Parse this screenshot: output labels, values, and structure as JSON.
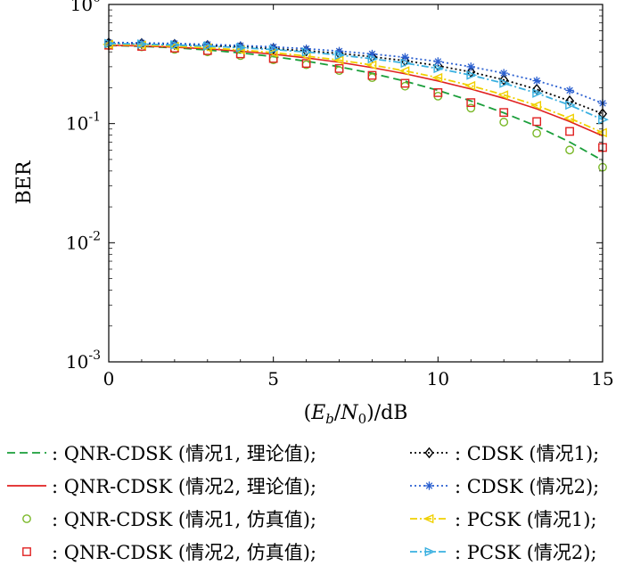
{
  "chart_data": {
    "type": "line",
    "xlabel_parts": {
      "open": "(",
      "E": "E",
      "b": "b",
      "slash": "/",
      "N": "N",
      "zero": "0",
      "close": ")",
      "unit": "/dB"
    },
    "ylabel": "BER",
    "x_ticks": [
      "0",
      "5",
      "10",
      "15"
    ],
    "y_ticks": [
      {
        "base": "10",
        "exp": "0",
        "value": 1
      },
      {
        "base": "10",
        "exp": "-1",
        "value": 0.1
      },
      {
        "base": "10",
        "exp": "-2",
        "value": 0.01
      },
      {
        "base": "10",
        "exp": "-3",
        "value": 0.001
      }
    ],
    "xlim": [
      0,
      15
    ],
    "ylim": [
      0.001,
      1
    ],
    "y_scale": "log",
    "legend_placement": "below",
    "series": [
      {
        "name": "QNR-CDSK (情况1, 理论值);",
        "color": "#1a9e3a",
        "line": "dashed",
        "marker": "none",
        "x": [
          0,
          1,
          2,
          3,
          4,
          5,
          6,
          7,
          8,
          9,
          10,
          11,
          12,
          13,
          14,
          15
        ],
        "y": [
          0.453,
          0.445,
          0.433,
          0.415,
          0.392,
          0.365,
          0.334,
          0.3,
          0.264,
          0.227,
          0.19,
          0.155,
          0.123,
          0.095,
          0.07,
          0.049
        ]
      },
      {
        "name": "QNR-CDSK (情况2, 理论值);",
        "color": "#e02020",
        "line": "solid",
        "marker": "none",
        "x": [
          0,
          1,
          2,
          3,
          4,
          5,
          6,
          7,
          8,
          9,
          10,
          11,
          12,
          13,
          14,
          15
        ],
        "y": [
          0.455,
          0.448,
          0.438,
          0.424,
          0.405,
          0.382,
          0.356,
          0.327,
          0.295,
          0.262,
          0.228,
          0.195,
          0.163,
          0.133,
          0.104,
          0.079
        ]
      },
      {
        "name": "QNR-CDSK (情况1, 仿真值);",
        "color": "#7ab828",
        "line": "none",
        "marker": "circle",
        "x": [
          0,
          1,
          2,
          3,
          4,
          5,
          6,
          7,
          8,
          9,
          10,
          11,
          12,
          13,
          14,
          15
        ],
        "y": [
          0.452,
          0.44,
          0.42,
          0.4,
          0.372,
          0.343,
          0.312,
          0.279,
          0.243,
          0.206,
          0.17,
          0.135,
          0.103,
          0.083,
          0.06,
          0.043
        ]
      },
      {
        "name": "QNR-CDSK (情况2, 仿真值);",
        "color": "#e02020",
        "line": "none",
        "marker": "square",
        "x": [
          0,
          1,
          2,
          3,
          4,
          5,
          6,
          7,
          8,
          9,
          10,
          11,
          12,
          13,
          14,
          15
        ],
        "y": [
          0.455,
          0.445,
          0.43,
          0.41,
          0.385,
          0.352,
          0.32,
          0.29,
          0.254,
          0.218,
          0.182,
          0.15,
          0.124,
          0.104,
          0.086,
          0.063
        ]
      },
      {
        "name": "CDSK (情况1);",
        "color": "#000000",
        "line": "dotted",
        "marker": "diamond",
        "x": [
          0,
          1,
          2,
          3,
          4,
          5,
          6,
          7,
          8,
          9,
          10,
          11,
          12,
          13,
          14,
          15
        ],
        "y": [
          0.475,
          0.47,
          0.462,
          0.452,
          0.44,
          0.425,
          0.408,
          0.388,
          0.364,
          0.337,
          0.306,
          0.271,
          0.233,
          0.194,
          0.155,
          0.121
        ]
      },
      {
        "name": "CDSK (情况2);",
        "color": "#2a5fd0",
        "line": "dotted",
        "marker": "star",
        "x": [
          0,
          1,
          2,
          3,
          4,
          5,
          6,
          7,
          8,
          9,
          10,
          11,
          12,
          13,
          14,
          15
        ],
        "y": [
          0.48,
          0.476,
          0.47,
          0.462,
          0.452,
          0.44,
          0.425,
          0.406,
          0.384,
          0.36,
          0.332,
          0.3,
          0.265,
          0.229,
          0.19,
          0.148
        ]
      },
      {
        "name": "PCSK (情况1);",
        "color": "#f0d000",
        "line": "dashdot",
        "marker": "triangle-left",
        "x": [
          0,
          1,
          2,
          3,
          4,
          5,
          6,
          7,
          8,
          9,
          10,
          11,
          12,
          13,
          14,
          15
        ],
        "y": [
          0.462,
          0.455,
          0.445,
          0.432,
          0.415,
          0.394,
          0.369,
          0.341,
          0.31,
          0.277,
          0.243,
          0.208,
          0.174,
          0.142,
          0.111,
          0.084
        ]
      },
      {
        "name": "PCSK (情况2);",
        "color": "#3ab0e0",
        "line": "dashdot",
        "marker": "triangle-right",
        "x": [
          0,
          1,
          2,
          3,
          4,
          5,
          6,
          7,
          8,
          9,
          10,
          11,
          12,
          13,
          14,
          15
        ],
        "y": [
          0.47,
          0.465,
          0.457,
          0.447,
          0.434,
          0.418,
          0.399,
          0.376,
          0.35,
          0.322,
          0.29,
          0.255,
          0.218,
          0.18,
          0.143,
          0.108
        ]
      }
    ]
  }
}
